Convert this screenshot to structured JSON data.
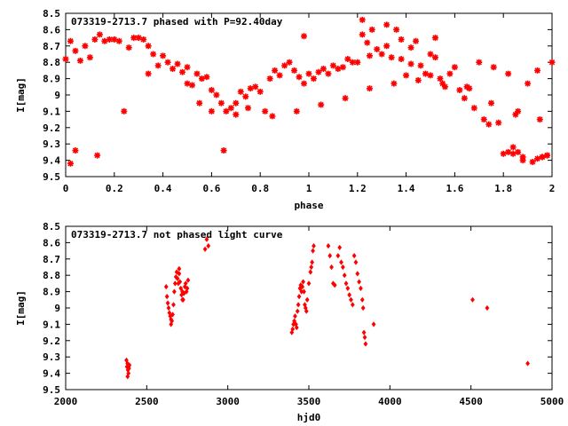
{
  "chart_data": [
    {
      "type": "scatter",
      "title": "073319-2713.7 phased with P=92.40day",
      "xlabel": "phase",
      "ylabel": "I[mag]",
      "xlim": [
        0,
        2
      ],
      "ylim": [
        8.5,
        9.5
      ],
      "y_inverted": true,
      "x_ticks": [
        "0",
        "0.2",
        "0.4",
        "0.6",
        "0.8",
        "1",
        "1.2",
        "1.4",
        "1.6",
        "1.8",
        "2"
      ],
      "y_ticks": [
        "8.5",
        "8.6",
        "8.7",
        "8.8",
        "8.9",
        "9",
        "9.1",
        "9.2",
        "9.3",
        "9.4",
        "9.5"
      ],
      "grid": false,
      "marker": "star",
      "color": "#ff0000",
      "series": [
        {
          "x": [
            0.0,
            0.02,
            0.04,
            0.06,
            0.08,
            0.1,
            0.12,
            0.14,
            0.16,
            0.18,
            0.2,
            0.22,
            0.26,
            0.28,
            0.3,
            0.32,
            0.34,
            0.36,
            0.38,
            0.4,
            0.42,
            0.44,
            0.46,
            0.48,
            0.5,
            0.52,
            0.54,
            0.56,
            0.58,
            0.6,
            0.62,
            0.64,
            0.66,
            0.68,
            0.7,
            0.72,
            0.74,
            0.76,
            0.78,
            0.8,
            0.82,
            0.84,
            0.86,
            0.88,
            0.9,
            0.92,
            0.94,
            0.96,
            0.98,
            1.0,
            1.02,
            1.04,
            1.06,
            1.08,
            1.1,
            1.12,
            1.14,
            1.16,
            1.18,
            1.2,
            1.22,
            1.24,
            1.26,
            1.28,
            1.3,
            1.32,
            1.34,
            1.36,
            1.38,
            1.4,
            1.42,
            1.44,
            1.46,
            1.48,
            1.5,
            1.52,
            1.54,
            1.56,
            1.58,
            1.6,
            1.62,
            1.64,
            1.66,
            1.68,
            1.7,
            1.72,
            1.74,
            1.76,
            1.78,
            1.8,
            1.82,
            1.84,
            1.86,
            1.88,
            1.9,
            1.92,
            1.94,
            1.96,
            1.98,
            2.0,
            0.02,
            0.04,
            0.13,
            0.24,
            0.65,
            1.22,
            1.32,
            1.38,
            1.42,
            1.5,
            1.52,
            1.82,
            1.84,
            1.86,
            1.88,
            1.94,
            1.96,
            1.98,
            0.34,
            0.5,
            0.55,
            0.6,
            0.7,
            0.75,
            0.85,
            0.95,
            1.05,
            1.15,
            1.25,
            1.35,
            1.45,
            1.55,
            1.65,
            1.75,
            1.85,
            1.95,
            0.98,
            1.25
          ],
          "y": [
            8.78,
            8.67,
            8.73,
            8.79,
            8.7,
            8.77,
            8.66,
            8.63,
            8.67,
            8.66,
            8.66,
            8.67,
            8.71,
            8.65,
            8.65,
            8.66,
            8.7,
            8.75,
            8.82,
            8.76,
            8.8,
            8.84,
            8.81,
            8.86,
            8.83,
            8.94,
            8.87,
            8.9,
            8.89,
            8.97,
            9.0,
            9.05,
            9.1,
            9.08,
            9.05,
            8.98,
            9.01,
            8.96,
            8.95,
            8.98,
            9.1,
            8.9,
            8.85,
            8.88,
            8.82,
            8.8,
            8.85,
            8.89,
            8.93,
            8.87,
            8.9,
            8.86,
            8.84,
            8.87,
            8.82,
            8.84,
            8.83,
            8.78,
            8.8,
            8.8,
            8.54,
            8.68,
            8.6,
            8.72,
            8.75,
            8.57,
            8.77,
            8.6,
            8.78,
            8.88,
            8.81,
            8.67,
            8.82,
            8.87,
            8.88,
            8.65,
            8.9,
            8.95,
            8.87,
            8.83,
            8.97,
            9.02,
            8.96,
            9.08,
            8.8,
            9.15,
            9.18,
            8.83,
            9.17,
            9.36,
            8.87,
            9.32,
            9.1,
            9.38,
            8.93,
            9.41,
            8.85,
            9.38,
            9.37,
            8.8,
            9.42,
            9.34,
            9.37,
            9.1,
            9.34,
            8.63,
            8.7,
            8.66,
            8.71,
            8.75,
            8.77,
            9.35,
            9.36,
            9.35,
            9.4,
            9.39,
            9.38,
            9.37,
            8.87,
            8.93,
            9.05,
            9.1,
            9.12,
            9.08,
            9.13,
            9.1,
            9.06,
            9.02,
            8.96,
            8.93,
            8.91,
            8.93,
            8.95,
            9.05,
            9.12,
            9.15,
            8.64,
            8.76
          ]
        }
      ]
    },
    {
      "type": "scatter",
      "title": "073319-2713.7 not phased light curve",
      "xlabel": "hjd0",
      "ylabel": "I[mag]",
      "xlim": [
        2000,
        5000
      ],
      "ylim": [
        8.5,
        9.5
      ],
      "y_inverted": true,
      "x_ticks": [
        "2000",
        "2500",
        "3000",
        "3500",
        "4000",
        "4500",
        "5000"
      ],
      "y_ticks": [
        "8.5",
        "8.6",
        "8.7",
        "8.8",
        "8.9",
        "9",
        "9.1",
        "9.2",
        "9.3",
        "9.4",
        "9.5"
      ],
      "grid": false,
      "marker": "diamond",
      "color": "#ff0000",
      "series": [
        {
          "x": [
            2375,
            2378,
            2381,
            2384,
            2387,
            2390,
            2393,
            2382,
            2388,
            2620,
            2625,
            2630,
            2635,
            2640,
            2645,
            2650,
            2655,
            2660,
            2665,
            2670,
            2675,
            2680,
            2685,
            2690,
            2695,
            2700,
            2705,
            2710,
            2715,
            2720,
            2725,
            2730,
            2735,
            2740,
            2745,
            2750,
            2755,
            2650,
            2700,
            2720,
            2860,
            2880,
            2870,
            3395,
            3400,
            3405,
            3410,
            3415,
            3420,
            3425,
            3430,
            3435,
            3440,
            3445,
            3450,
            3455,
            3460,
            3465,
            3470,
            3475,
            3480,
            3485,
            3490,
            3500,
            3510,
            3515,
            3520,
            3525,
            3530,
            3620,
            3630,
            3640,
            3650,
            3660,
            3680,
            3690,
            3700,
            3710,
            3720,
            3730,
            3740,
            3750,
            3760,
            3770,
            3780,
            3790,
            3800,
            3810,
            3820,
            3830,
            3835,
            3840,
            3845,
            3850,
            3900,
            4510,
            4600,
            4850
          ],
          "y": [
            9.32,
            9.36,
            9.34,
            9.38,
            9.4,
            9.37,
            9.35,
            9.42,
            9.36,
            8.87,
            8.93,
            8.97,
            9.0,
            9.03,
            9.05,
            9.07,
            9.08,
            9.04,
            8.98,
            8.9,
            8.85,
            8.81,
            8.78,
            8.82,
            8.85,
            8.79,
            8.84,
            8.88,
            8.92,
            8.9,
            8.95,
            8.91,
            8.87,
            8.85,
            8.9,
            8.88,
            8.83,
            9.1,
            8.76,
            8.95,
            8.64,
            8.62,
            8.58,
            9.15,
            9.13,
            9.1,
            9.08,
            9.05,
            9.1,
            9.12,
            9.02,
            8.98,
            8.93,
            8.88,
            8.86,
            8.9,
            8.87,
            8.84,
            8.9,
            8.98,
            9.0,
            9.02,
            8.95,
            8.85,
            8.78,
            8.75,
            8.72,
            8.65,
            8.62,
            8.62,
            8.68,
            8.75,
            8.85,
            8.86,
            8.68,
            8.63,
            8.72,
            8.75,
            8.8,
            8.85,
            8.88,
            8.92,
            8.95,
            8.98,
            8.68,
            8.72,
            8.79,
            8.84,
            8.88,
            8.95,
            9.0,
            9.15,
            9.18,
            9.22,
            9.1,
            8.95,
            9.0,
            9.34
          ]
        }
      ]
    }
  ]
}
